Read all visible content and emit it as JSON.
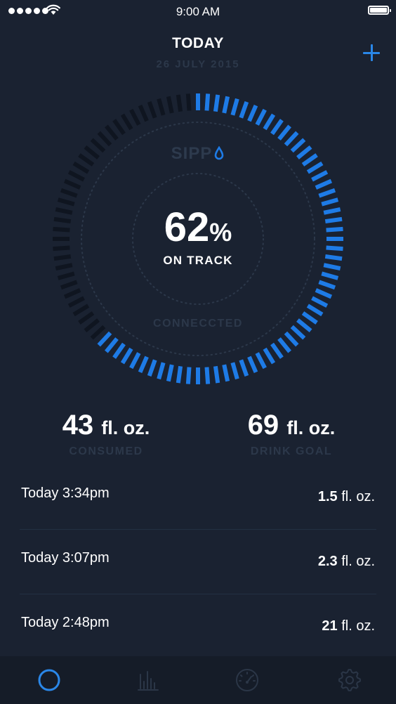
{
  "status_bar": {
    "time": "9:00 AM"
  },
  "header": {
    "title": "TODAY",
    "date": "26 JULY 2015",
    "add_icon": "plus-icon"
  },
  "gauge": {
    "brand": "SIPP",
    "percent": "62",
    "percent_sign": "%",
    "percent_value": 62,
    "status": "ON TRACK",
    "connection": "CONNECCTED",
    "progress_color": "#1e7be6",
    "track_color": "#0f1520"
  },
  "stats": {
    "consumed": {
      "value": "43",
      "unit": "fl. oz.",
      "label": "CONSUMED"
    },
    "goal": {
      "value": "69",
      "unit": "fl. oz.",
      "label": "DRINK GOAL"
    }
  },
  "log": [
    {
      "time": "Today 3:34pm",
      "amount": "1.5",
      "unit": "fl. oz."
    },
    {
      "time": "Today 3:07pm",
      "amount": "2.3",
      "unit": "fl. oz."
    },
    {
      "time": "Today 2:48pm",
      "amount": "21",
      "unit": "fl. oz."
    }
  ],
  "tabs": [
    {
      "icon": "circle-icon",
      "active": true
    },
    {
      "icon": "bar-chart-icon",
      "active": false
    },
    {
      "icon": "speedometer-icon",
      "active": false
    },
    {
      "icon": "gear-icon",
      "active": false
    }
  ],
  "colors": {
    "accent": "#2a87e8",
    "background": "#1a2231",
    "muted_text": "#2c384a"
  }
}
